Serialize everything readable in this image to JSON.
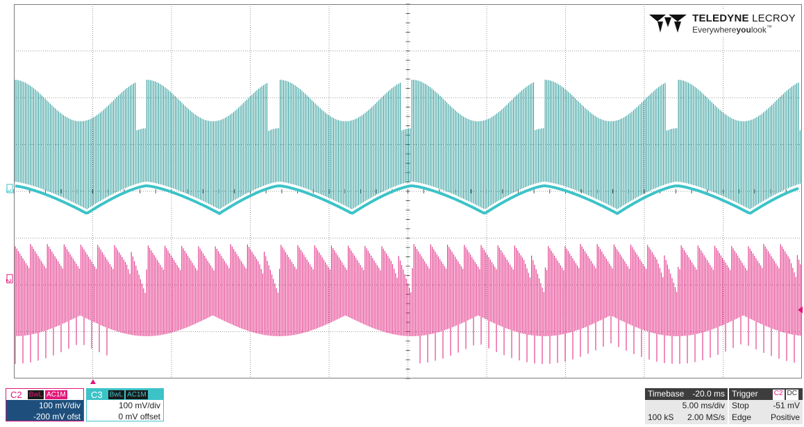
{
  "brand": {
    "name_bold": "TELEDYNE",
    "name_thin": " LECROY",
    "tagline_a": "Everywhere",
    "tagline_b": "you",
    "tagline_c": "look",
    "trademark": "™",
    "logo_icon": "teledyne-logo-icon"
  },
  "channels": {
    "c2": {
      "name": "C2",
      "bw": "BwL",
      "coupling": "AC1M",
      "scale": "100 mV/div",
      "offset": "-200 mV ofst",
      "color": "#e0177a",
      "ground_marker": "2"
    },
    "c3": {
      "name": "C3",
      "bw": "BwL",
      "coupling": "AC1M",
      "scale": "100 mV/div",
      "offset": "0 mV offset",
      "color": "#3cc3c8",
      "ground_marker": "3"
    }
  },
  "timebase": {
    "label": "Timebase",
    "delay": "-20.0 ms",
    "per_div": "5.00 ms/div",
    "points": "100 kS",
    "sample_rate": "2.00 MS/s"
  },
  "trigger": {
    "label": "Trigger",
    "source": "C2",
    "coupling": "DC",
    "mode": "Stop",
    "level": "-51 mV",
    "type": "Edge",
    "slope": "Positive"
  },
  "grid": {
    "h_divisions": 10,
    "v_divisions": 8,
    "enabled": true
  },
  "colors": {
    "grid": "#7a7a7a",
    "frame": "#7a7a7a",
    "trace_c2": "#e0177a",
    "trace_c3_dark": "#16908f",
    "trace_c3_light": "#3cc3c8"
  }
}
